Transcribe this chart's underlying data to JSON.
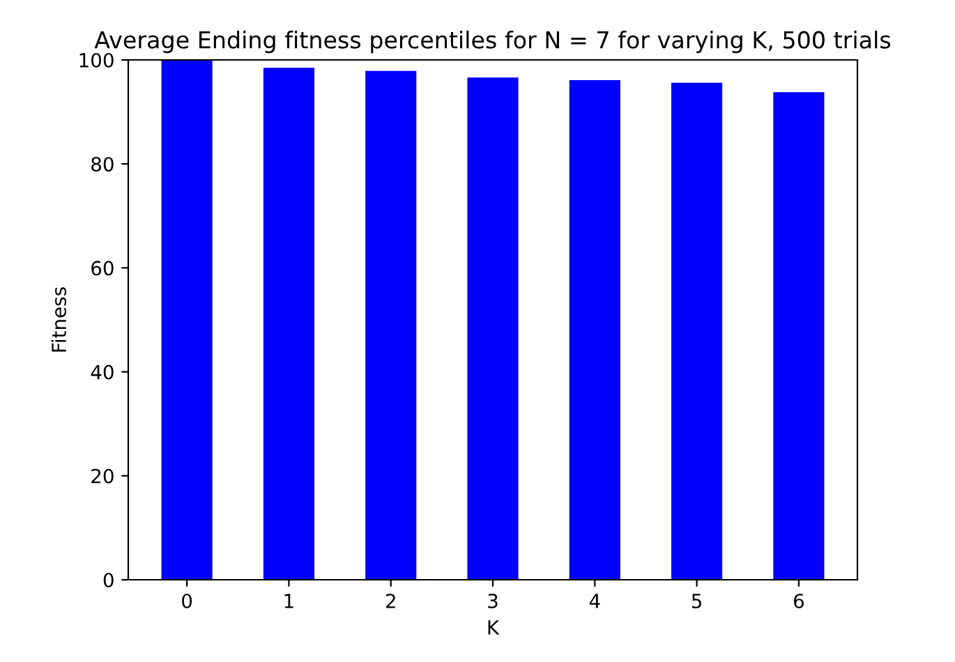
{
  "chart_data": {
    "type": "bar",
    "title": "Average Ending fitness percentiles for N = 7 for varying K, 500 trials",
    "xlabel": "K",
    "ylabel": "Fitness",
    "categories": [
      "0",
      "1",
      "2",
      "3",
      "4",
      "5",
      "6"
    ],
    "values": [
      100,
      98.5,
      97.9,
      96.6,
      96.1,
      95.6,
      93.8
    ],
    "color": "#0000ff",
    "ylim": [
      0,
      100
    ],
    "yticks": [
      0,
      20,
      40,
      60,
      80,
      100
    ],
    "grid": false,
    "legend": false
  }
}
